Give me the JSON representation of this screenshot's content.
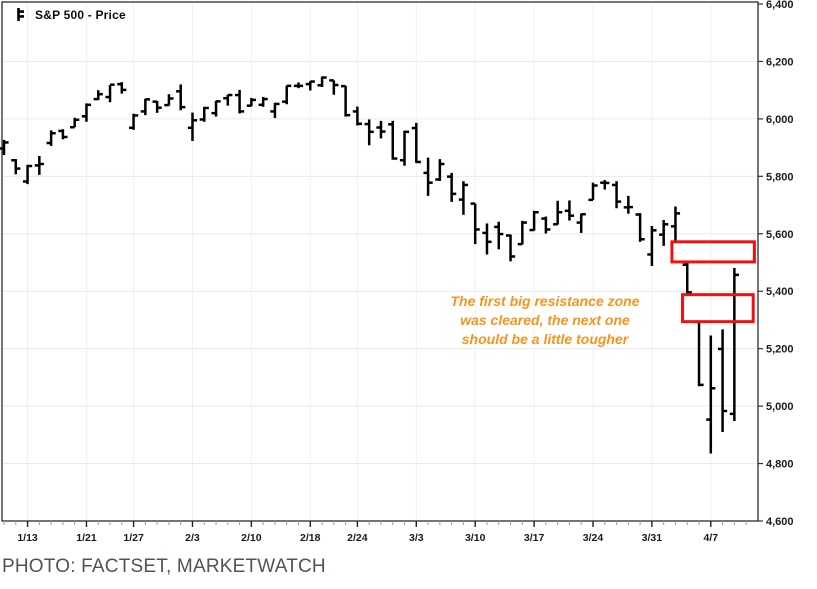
{
  "legend": {
    "title": "S&P 500 - Price"
  },
  "annotation": {
    "lines": [
      "The first big resistance zone",
      "was cleared, the next one",
      "should be a little tougher"
    ],
    "color": "#F7941D"
  },
  "footer": {
    "caption": "PHOTO: FACTSET, MARKETWATCH",
    "color": "#4E545A"
  },
  "chart_data": {
    "type": "ohlc_bar",
    "title": "S&P 500 - Price",
    "xlabel": "",
    "ylabel": "",
    "ylim": [
      4600,
      6400
    ],
    "y_tick_step": 200,
    "y_tick_labels": [
      "6,400",
      "6,200",
      "6,000",
      "5,800",
      "5,600",
      "5,400",
      "5,200",
      "5,000",
      "4,800",
      "4,600"
    ],
    "grid": true,
    "legend_position": "top-left",
    "bar_color": "#000000",
    "x_ticks": [
      {
        "label": "1/13",
        "index": 2
      },
      {
        "label": "1/21",
        "index": 7
      },
      {
        "label": "1/27",
        "index": 11
      },
      {
        "label": "2/3",
        "index": 16
      },
      {
        "label": "2/10",
        "index": 21
      },
      {
        "label": "2/18",
        "index": 26
      },
      {
        "label": "2/24",
        "index": 30
      },
      {
        "label": "3/3",
        "index": 35
      },
      {
        "label": "3/10",
        "index": 40
      },
      {
        "label": "3/17",
        "index": 45
      },
      {
        "label": "3/24",
        "index": 50
      },
      {
        "label": "3/31",
        "index": 55
      },
      {
        "label": "4/7",
        "index": 60
      }
    ],
    "dates": [
      "1/8",
      "1/10",
      "1/13",
      "1/14",
      "1/15",
      "1/16",
      "1/17",
      "1/21",
      "1/22",
      "1/23",
      "1/24",
      "1/27",
      "1/28",
      "1/29",
      "1/30",
      "1/31",
      "2/3",
      "2/4",
      "2/5",
      "2/6",
      "2/7",
      "2/10",
      "2/11",
      "2/12",
      "2/13",
      "2/14",
      "2/18",
      "2/19",
      "2/20",
      "2/21",
      "2/24",
      "2/25",
      "2/26",
      "2/27",
      "2/28",
      "3/3",
      "3/4",
      "3/5",
      "3/6",
      "3/7",
      "3/10",
      "3/11",
      "3/12",
      "3/13",
      "3/14",
      "3/17",
      "3/18",
      "3/19",
      "3/20",
      "3/21",
      "3/24",
      "3/25",
      "3/26",
      "3/27",
      "3/28",
      "3/31",
      "4/1",
      "4/2",
      "4/3",
      "4/4",
      "4/7",
      "4/8",
      "4/9"
    ],
    "ohlc": [
      [
        5897,
        5927,
        5874,
        5918
      ],
      [
        5856,
        5860,
        5807,
        5827
      ],
      [
        5782,
        5840,
        5773,
        5836
      ],
      [
        5838,
        5871,
        5805,
        5843
      ],
      [
        5916,
        5960,
        5906,
        5950
      ],
      [
        5958,
        5964,
        5929,
        5937
      ],
      [
        5971,
        6004,
        5971,
        5997
      ],
      [
        6009,
        6054,
        5990,
        6049
      ],
      [
        6069,
        6100,
        6066,
        6086
      ],
      [
        6076,
        6118,
        6058,
        6119
      ],
      [
        6121,
        6128,
        6088,
        6101
      ],
      [
        5969,
        6018,
        5962,
        6012
      ],
      [
        6026,
        6070,
        6013,
        6068
      ],
      [
        6060,
        6062,
        6021,
        6039
      ],
      [
        6048,
        6086,
        6046,
        6071
      ],
      [
        6096,
        6120,
        6030,
        6041
      ],
      [
        5969,
        6022,
        5923,
        5995
      ],
      [
        5998,
        6042,
        5990,
        6038
      ],
      [
        6020,
        6063,
        6008,
        6061
      ],
      [
        6072,
        6084,
        6046,
        6083
      ],
      [
        6083,
        6101,
        6019,
        6026
      ],
      [
        6046,
        6073,
        6044,
        6066
      ],
      [
        6049,
        6076,
        6042,
        6069
      ],
      [
        6026,
        6056,
        6003,
        6052
      ],
      [
        6060,
        6116,
        6051,
        6115
      ],
      [
        6115,
        6127,
        6107,
        6115
      ],
      [
        6121,
        6131,
        6099,
        6130
      ],
      [
        6117,
        6147,
        6111,
        6144
      ],
      [
        6134,
        6134,
        6084,
        6118
      ],
      [
        6114,
        6115,
        6008,
        6013
      ],
      [
        6026,
        6043,
        5977,
        5983
      ],
      [
        5982,
        5998,
        5908,
        5955
      ],
      [
        5970,
        5993,
        5932,
        5956
      ],
      [
        5981,
        5993,
        5858,
        5862
      ],
      [
        5856,
        5959,
        5837,
        5955
      ],
      [
        5968,
        5986,
        5847,
        5850
      ],
      [
        5812,
        5865,
        5732,
        5778
      ],
      [
        5789,
        5860,
        5784,
        5843
      ],
      [
        5799,
        5812,
        5711,
        5739
      ],
      [
        5719,
        5783,
        5666,
        5770
      ],
      [
        5705,
        5705,
        5564,
        5615
      ],
      [
        5603,
        5636,
        5528,
        5572
      ],
      [
        5624,
        5642,
        5546,
        5599
      ],
      [
        5594,
        5597,
        5504,
        5521
      ],
      [
        5564,
        5645,
        5563,
        5639
      ],
      [
        5613,
        5680,
        5611,
        5675
      ],
      [
        5653,
        5660,
        5601,
        5615
      ],
      [
        5633,
        5715,
        5632,
        5675
      ],
      [
        5680,
        5716,
        5646,
        5663
      ],
      [
        5639,
        5670,
        5603,
        5668
      ],
      [
        5718,
        5778,
        5718,
        5768
      ],
      [
        5778,
        5787,
        5754,
        5777
      ],
      [
        5770,
        5783,
        5689,
        5712
      ],
      [
        5692,
        5732,
        5670,
        5693
      ],
      [
        5667,
        5672,
        5572,
        5581
      ],
      [
        5528,
        5627,
        5488,
        5612
      ],
      [
        5597,
        5648,
        5558,
        5633
      ],
      [
        5626,
        5695,
        5571,
        5671
      ],
      [
        5492,
        5499,
        5390,
        5396
      ],
      [
        5293,
        5293,
        5069,
        5074
      ],
      [
        4953,
        5246,
        4835,
        5062
      ],
      [
        5199,
        5267,
        4910,
        4983
      ],
      [
        4973,
        5481,
        4948,
        5457
      ]
    ],
    "zones": [
      {
        "name": "resistance-zone-upper",
        "price_top": 5572,
        "price_bottom": 5502,
        "x_start_index": 56.7,
        "x_end_index": 63.7,
        "color": "#EE1111"
      },
      {
        "name": "resistance-zone-lower",
        "price_top": 5388,
        "price_bottom": 5294,
        "x_start_index": 57.6,
        "x_end_index": 63.6,
        "color": "#EE1111"
      }
    ]
  }
}
